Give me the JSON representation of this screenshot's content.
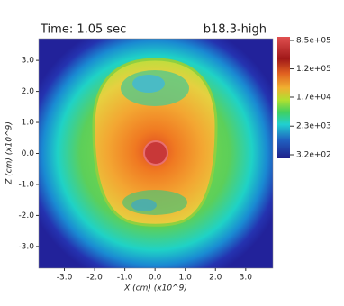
{
  "chart_data": {
    "type": "heatmap",
    "title": "Time: 1.05 sec",
    "subtitle": "b18.3-high",
    "x_label": "X (cm) (x10^9)",
    "y_label": "Z (cm) (x10^9)",
    "xlim": [
      -3.85,
      3.9
    ],
    "ylim": [
      -3.7,
      3.7
    ],
    "xticks": [
      {
        "value": -3,
        "label": "-3.0"
      },
      {
        "value": -2,
        "label": "-2.0"
      },
      {
        "value": -1,
        "label": "-1.0"
      },
      {
        "value": 0,
        "label": "0.0"
      },
      {
        "value": 1,
        "label": "1.0"
      },
      {
        "value": 2,
        "label": "2.0"
      },
      {
        "value": 3,
        "label": "3.0"
      }
    ],
    "yticks": [
      {
        "value": -3,
        "label": "-3.0"
      },
      {
        "value": -2,
        "label": "-2.0"
      },
      {
        "value": -1,
        "label": "-1.0"
      },
      {
        "value": 0,
        "label": "0.0"
      },
      {
        "value": 1,
        "label": "1.0"
      },
      {
        "value": 2,
        "label": "2.0"
      },
      {
        "value": 3,
        "label": "3.0"
      }
    ],
    "colorbar": {
      "log_scale": true,
      "clim": [
        320,
        850000
      ],
      "ticks": [
        {
          "value": 850000,
          "label": "8.5e+05"
        },
        {
          "value": 120000,
          "label": "1.2e+05"
        },
        {
          "value": 17000,
          "label": "1.7e+04"
        },
        {
          "value": 2300,
          "label": "2.3e+03"
        },
        {
          "value": 320,
          "label": "3.2e+02"
        }
      ]
    }
  }
}
